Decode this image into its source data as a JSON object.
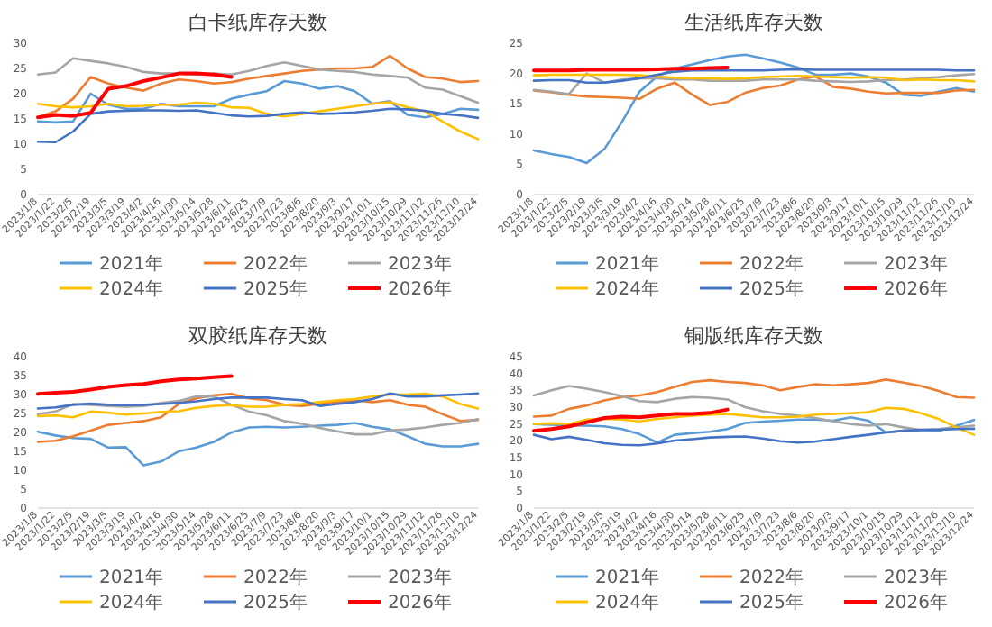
{
  "chart_data": [
    {
      "type": "line",
      "title": "白卡纸库存天数",
      "legend": "bottom",
      "ylim": [
        0,
        30
      ],
      "yticks": [
        0,
        5,
        10,
        15,
        20,
        25,
        30
      ],
      "categories": [
        "2023/1/8",
        "2023/1/22",
        "2023/2/5",
        "2023/2/19",
        "2023/3/5",
        "2023/3/19",
        "2023/4/2",
        "2023/4/16",
        "2023/4/30",
        "2023/5/14",
        "2023/5/28",
        "2023/6/11",
        "2023/6/25",
        "2023/7/9",
        "2023/7/23",
        "2023/8/6",
        "2023/8/20",
        "2023/9/3",
        "2023/9/17",
        "2023/10/1",
        "2023/10/15",
        "2023/10/29",
        "2023/11/12",
        "2023/11/26",
        "2023/12/10",
        "2023/12/24"
      ],
      "series": [
        {
          "name": "2021年",
          "color": "#5b9bd5",
          "values": [
            14.5,
            14.3,
            14.5,
            20,
            17.8,
            17,
            17,
            18,
            17.5,
            17.5,
            17.5,
            19,
            19.8,
            20.5,
            22.5,
            22,
            21,
            21.5,
            20.5,
            18,
            18.5,
            15.8,
            15.3,
            16,
            17,
            16.8
          ]
        },
        {
          "name": "2022年",
          "color": "#ed7d31",
          "values": [
            15.3,
            16.5,
            19,
            23.3,
            22,
            21.2,
            20.6,
            22,
            22.8,
            22.5,
            22,
            22.3,
            23,
            23.5,
            24,
            24.5,
            24.8,
            25,
            25,
            25.3,
            27.5,
            25,
            23.3,
            23,
            22.3,
            22.5
          ]
        },
        {
          "name": "2023年",
          "color": "#a5a5a5",
          "values": [
            23.8,
            24.2,
            27,
            26.5,
            26,
            25.3,
            24.3,
            24,
            24,
            23.8,
            24,
            23.8,
            24.5,
            25.5,
            26.2,
            25.5,
            24.8,
            24.5,
            24.3,
            23.8,
            23.5,
            23.2,
            21.2,
            20.8,
            19.5,
            18.2
          ]
        },
        {
          "name": "2024年",
          "color": "#ffc000",
          "values": [
            18,
            17.5,
            17.3,
            17.5,
            18,
            17.5,
            17.6,
            17.8,
            17.8,
            18.2,
            18,
            17.3,
            17.2,
            16,
            15.5,
            16,
            16.5,
            17,
            17.5,
            18,
            18.3,
            17.3,
            16.5,
            14.5,
            12.5,
            11
          ]
        },
        {
          "name": "2025年",
          "color": "#4472c4",
          "values": [
            10.5,
            10.4,
            12.5,
            16,
            16.5,
            16.6,
            16.7,
            16.7,
            16.6,
            16.7,
            16.2,
            15.7,
            15.5,
            15.6,
            16,
            16.3,
            16,
            16.1,
            16.3,
            16.6,
            17,
            16.9,
            16.6,
            16,
            15.7,
            15.2
          ]
        },
        {
          "name": "2026年",
          "color": "#ff0000",
          "values": [
            15.3,
            15.8,
            15.6,
            16.2,
            21,
            21.5,
            22.5,
            23.2,
            24,
            24,
            23.8,
            23.3,
            null,
            null,
            null,
            null,
            null,
            null,
            null,
            null,
            null,
            null,
            null,
            null,
            null,
            null
          ]
        }
      ]
    },
    {
      "type": "line",
      "title": "生活纸库存天数",
      "legend": "bottom",
      "ylim": [
        0,
        25
      ],
      "yticks": [
        0,
        5,
        10,
        15,
        20,
        25
      ],
      "categories": [
        "2023/1/8",
        "2023/1/22",
        "2023/2/5",
        "2023/2/19",
        "2023/3/5",
        "2023/3/19",
        "2023/4/2",
        "2023/4/16",
        "2023/4/30",
        "2023/5/14",
        "2023/5/28",
        "2023/6/11",
        "2023/6/25",
        "2023/7/9",
        "2023/7/23",
        "2023/8/6",
        "2023/8/20",
        "2023/9/3",
        "2023/9/17",
        "2023/10/1",
        "2023/10/15",
        "2023/10/29",
        "2023/11/12",
        "2023/11/26",
        "2023/12/10",
        "2023/12/24"
      ],
      "series": [
        {
          "name": "2021年",
          "color": "#5b9bd5",
          "values": [
            7.3,
            6.7,
            6.2,
            5.2,
            7.5,
            12,
            17,
            19.5,
            20.8,
            21.5,
            22.2,
            22.8,
            23.1,
            22.5,
            21.8,
            21,
            19.8,
            19.8,
            20,
            19.5,
            18.5,
            16.5,
            16.3,
            17,
            17.6,
            17
          ]
        },
        {
          "name": "2022年",
          "color": "#ed7d31",
          "values": [
            17.2,
            16.9,
            16.5,
            16.2,
            16.1,
            16,
            15.8,
            17.5,
            18.5,
            16.5,
            14.8,
            15.3,
            16.8,
            17.6,
            18,
            19,
            19.5,
            17.8,
            17.5,
            17,
            16.7,
            16.8,
            16.8,
            16.8,
            17.2,
            17.3
          ]
        },
        {
          "name": "2023年",
          "color": "#a5a5a5",
          "values": [
            17.3,
            17,
            16.6,
            20,
            18.5,
            19,
            19.2,
            19.2,
            19,
            19,
            18.8,
            18.8,
            18.8,
            19,
            19,
            19,
            18.8,
            18.7,
            18.6,
            18.7,
            18.9,
            19,
            19.2,
            19.4,
            19.7,
            19.9
          ]
        },
        {
          "name": "2024年",
          "color": "#ffc000",
          "values": [
            19.7,
            19.8,
            19.8,
            19.8,
            19.8,
            19.8,
            19.7,
            19.5,
            19.3,
            19.2,
            19.2,
            19.1,
            19.2,
            19.4,
            19.5,
            19.6,
            19.5,
            19.4,
            19.3,
            19.4,
            19.3,
            18.9,
            19,
            18.9,
            18.9,
            18.7
          ]
        },
        {
          "name": "2025年",
          "color": "#4472c4",
          "values": [
            18.8,
            18.9,
            18.9,
            18.5,
            18.5,
            18.8,
            19.2,
            19.8,
            20.3,
            20.5,
            20.5,
            20.5,
            20.5,
            20.5,
            20.6,
            20.7,
            20.6,
            20.6,
            20.6,
            20.6,
            20.6,
            20.6,
            20.6,
            20.6,
            20.5,
            20.5
          ]
        },
        {
          "name": "2026年",
          "color": "#ff0000",
          "values": [
            20.5,
            20.5,
            20.5,
            20.6,
            20.6,
            20.6,
            20.6,
            20.7,
            20.8,
            20.8,
            20.9,
            21,
            null,
            null,
            null,
            null,
            null,
            null,
            null,
            null,
            null,
            null,
            null,
            null,
            null,
            null
          ]
        }
      ]
    },
    {
      "type": "line",
      "title": "双胶纸库存天数",
      "legend": "bottom",
      "ylim": [
        0,
        40
      ],
      "yticks": [
        0,
        5,
        10,
        15,
        20,
        25,
        30,
        35,
        40
      ],
      "categories": [
        "2023/1/8",
        "2023/1/22",
        "2023/2/5",
        "2023/2/19",
        "2023/3/5",
        "2023/3/19",
        "2023/4/2",
        "2023/4/16",
        "2023/4/30",
        "2023/5/14",
        "2023/5/28",
        "2023/6/11",
        "2023/6/25",
        "2023/7/9",
        "2023/7/23",
        "2023/8/6",
        "2023/8/20",
        "2023/9/3",
        "2023/9/17",
        "2023/10/1",
        "2023/10/15",
        "2023/10/29",
        "2023/11/12",
        "2023/11/26",
        "2023/12/10",
        "2023/12/24"
      ],
      "series": [
        {
          "name": "2021年",
          "color": "#5b9bd5",
          "values": [
            20.2,
            19.2,
            18.5,
            18.3,
            16,
            16.1,
            11.3,
            12.3,
            15,
            16,
            17.5,
            20,
            21.3,
            21.5,
            21.3,
            21.5,
            21.8,
            22,
            22.5,
            21.5,
            20.8,
            19,
            17,
            16.3,
            16.3,
            17
          ]
        },
        {
          "name": "2022年",
          "color": "#ed7d31",
          "values": [
            17.5,
            17.8,
            19,
            20.5,
            22,
            22.5,
            23,
            24,
            27.5,
            29,
            29.8,
            30.2,
            29,
            28.5,
            27.3,
            27,
            27.5,
            28,
            28.5,
            28,
            28.5,
            27.3,
            26.8,
            24.8,
            23,
            23.3
          ]
        },
        {
          "name": "2023年",
          "color": "#a5a5a5",
          "values": [
            24.8,
            25.5,
            27.5,
            27.3,
            27,
            26.8,
            27,
            27.8,
            28.3,
            29.5,
            29.5,
            27.3,
            25.5,
            24.5,
            23,
            22.3,
            21.2,
            20.3,
            19.5,
            19.5,
            20.5,
            20.8,
            21.3,
            22,
            22.5,
            23.5
          ]
        },
        {
          "name": "2024年",
          "color": "#ffc000",
          "values": [
            24.3,
            24.5,
            24,
            25.5,
            25.2,
            24.7,
            25,
            25.4,
            25.6,
            26.5,
            27,
            27.2,
            26.8,
            26.8,
            27.3,
            27.5,
            28,
            28.5,
            28.8,
            29.5,
            30,
            30,
            30.2,
            29.5,
            27.5,
            26.3
          ]
        },
        {
          "name": "2025年",
          "color": "#4472c4",
          "values": [
            26.3,
            26.6,
            27.3,
            27.6,
            27.3,
            27.2,
            27.3,
            27.5,
            27.8,
            28.2,
            28.8,
            29.2,
            29.2,
            29.2,
            28.8,
            28.5,
            27,
            27.5,
            28,
            28.8,
            30.3,
            29.5,
            29.5,
            29.8,
            30,
            30.3
          ]
        },
        {
          "name": "2026年",
          "color": "#ff0000",
          "values": [
            30.2,
            30.5,
            30.7,
            31.3,
            32,
            32.5,
            32.8,
            33.5,
            34,
            34.2,
            34.6,
            34.9,
            null,
            null,
            null,
            null,
            null,
            null,
            null,
            null,
            null,
            null,
            null,
            null,
            null,
            null
          ]
        }
      ]
    },
    {
      "type": "line",
      "title": "铜版纸库存天数",
      "legend": "bottom",
      "ylim": [
        0,
        45
      ],
      "yticks": [
        0,
        5,
        10,
        15,
        20,
        25,
        30,
        35,
        40,
        45
      ],
      "categories": [
        "2023/1/8",
        "2023/1/22",
        "2023/2/5",
        "2023/2/19",
        "2023/3/5",
        "2023/3/19",
        "2023/4/2",
        "2023/4/16",
        "2023/4/30",
        "2023/5/14",
        "2023/5/28",
        "2023/6/11",
        "2023/6/25",
        "2023/7/9",
        "2023/7/23",
        "2023/8/6",
        "2023/8/20",
        "2023/9/3",
        "2023/9/17",
        "2023/10/1",
        "2023/10/15",
        "2023/10/29",
        "2023/11/12",
        "2023/11/26",
        "2023/12/10",
        "2023/12/24"
      ],
      "series": [
        {
          "name": "2021年",
          "color": "#5b9bd5",
          "values": [
            25,
            24.8,
            24.6,
            24.5,
            24.3,
            23.5,
            22,
            19.5,
            21.8,
            22.3,
            22.7,
            23.5,
            25.3,
            25.7,
            26,
            26.3,
            26.3,
            26,
            27,
            26,
            22.5,
            23,
            23,
            23,
            24.5,
            26.2
          ]
        },
        {
          "name": "2022年",
          "color": "#ed7d31",
          "values": [
            27.2,
            27.5,
            29.5,
            30.5,
            32,
            33,
            33.5,
            34.5,
            36,
            37.5,
            38,
            37.5,
            37.2,
            36.5,
            35,
            36,
            36.8,
            36.5,
            36.8,
            37.2,
            38.2,
            37.3,
            36.3,
            34.8,
            33,
            32.8
          ]
        },
        {
          "name": "2023年",
          "color": "#a5a5a5",
          "values": [
            33.5,
            35,
            36.3,
            35.5,
            34.5,
            33.3,
            31.8,
            31.5,
            32.5,
            33,
            32.8,
            32.3,
            30,
            28.8,
            28,
            27.5,
            26.8,
            25.8,
            25,
            24.5,
            25,
            24,
            23.2,
            23.5,
            24,
            24.5
          ]
        },
        {
          "name": "2024年",
          "color": "#ffc000",
          "values": [
            25,
            25.2,
            25,
            26.3,
            26.5,
            26.3,
            25.8,
            26.5,
            27,
            27.5,
            27.8,
            28,
            27.5,
            27,
            27,
            27.2,
            27.8,
            28,
            28.2,
            28.5,
            29.8,
            29.5,
            28.2,
            26.5,
            24,
            21.8
          ]
        },
        {
          "name": "2025年",
          "color": "#4472c4",
          "values": [
            21.8,
            20.5,
            21.2,
            20.3,
            19.3,
            18.8,
            18.7,
            19.2,
            20.1,
            20.5,
            21,
            21.2,
            21.3,
            20.7,
            19.9,
            19.5,
            19.8,
            20.5,
            21.2,
            21.8,
            22.5,
            23,
            23.3,
            23.3,
            23.5,
            23.6
          ]
        },
        {
          "name": "2026年",
          "color": "#ff0000",
          "values": [
            23,
            23.5,
            24.3,
            25.5,
            26.8,
            27.2,
            27,
            27.5,
            28,
            28,
            28.3,
            29.3,
            null,
            null,
            null,
            null,
            null,
            null,
            null,
            null,
            null,
            null,
            null,
            null,
            null,
            null
          ]
        }
      ]
    }
  ]
}
